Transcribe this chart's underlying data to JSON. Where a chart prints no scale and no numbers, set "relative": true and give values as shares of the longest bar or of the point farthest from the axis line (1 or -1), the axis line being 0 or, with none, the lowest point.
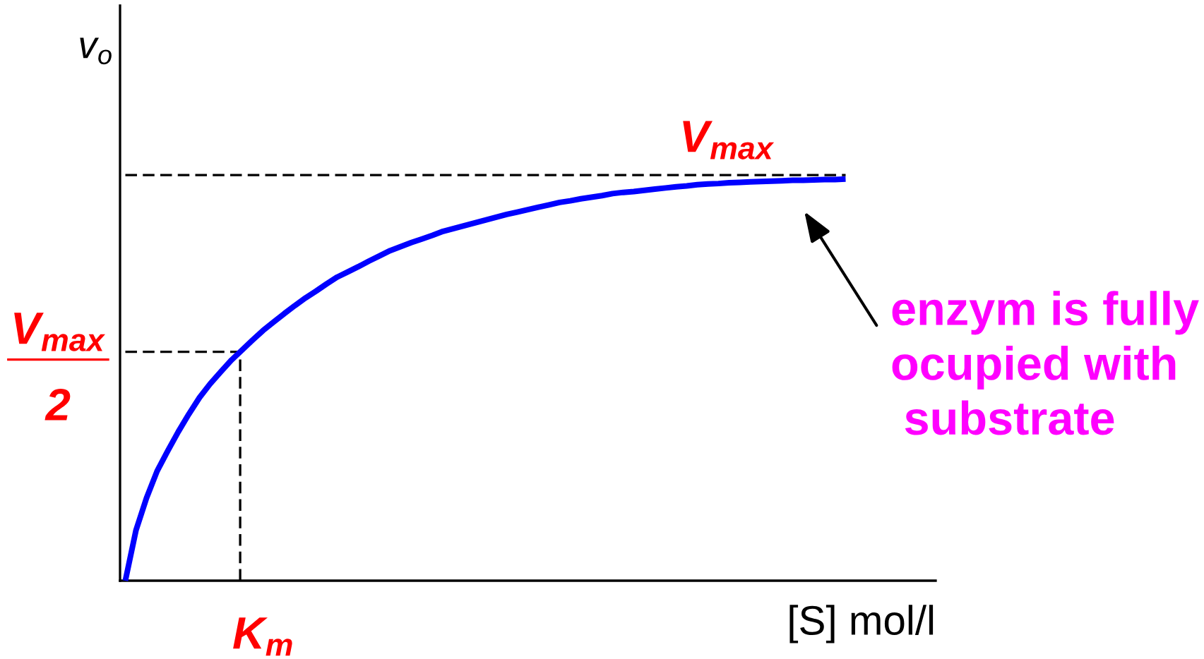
{
  "chart_data": {
    "type": "line",
    "relative": true,
    "categories": [
      null,
      null,
      null,
      null,
      null,
      null,
      null,
      null,
      null,
      null,
      null,
      null,
      null,
      null,
      null,
      null,
      null,
      null,
      null,
      null,
      null,
      null,
      null,
      null,
      null,
      null,
      null,
      null,
      null,
      null,
      null,
      null,
      null,
      null,
      null,
      null,
      null,
      null,
      null,
      null,
      null,
      null,
      null,
      null,
      null,
      null,
      null,
      null,
      null,
      null,
      null,
      null,
      null,
      null,
      null,
      null,
      null,
      null,
      null,
      null,
      null,
      null,
      null,
      null,
      null,
      null,
      null,
      null,
      null,
      null,
      null,
      null,
      null,
      null,
      null,
      null,
      null
    ],
    "xlabel": "[S] mol/l",
    "ylabel": "v$_{o}$",
    "series": [
      {
        "color": "#0000ff",
        "values": [
          0,
          0.125,
          0.206,
          0.273,
          0.323,
          0.371,
          0.415,
          0.456,
          0.49,
          0.52,
          0.549,
          0.574,
          0.599,
          0.623,
          0.644,
          0.665,
          0.685,
          0.704,
          0.721,
          0.739,
          0.756,
          0.769,
          0.782,
          0.796,
          0.809,
          0.822,
          0.832,
          0.842,
          0.851,
          0.86,
          0.87,
          0.877,
          0.884,
          0.891,
          0.898,
          0.905,
          0.912,
          0.918,
          0.924,
          0.93,
          0.936,
          0.942,
          0.946,
          0.951,
          0.955,
          0.959,
          0.964,
          0.967,
          0.969,
          0.972,
          0.975,
          0.978,
          0.981,
          0.983,
          0.986,
          0.988,
          0.989,
          0.991,
          0.992,
          0.993,
          0.994,
          0.995,
          0.996,
          0.997,
          0.997,
          0.998,
          0.999,
          0.999,
          1.0,
          null,
          null,
          null,
          null,
          null,
          null,
          null,
          null
        ]
      }
    ],
    "ref_lines": [
      {
        "axis": "y",
        "value": 1.01,
        "label": "V$_{max}$",
        "color": "#000000",
        "line_style": "dashed"
      },
      {
        "axis": "y",
        "value": 0.57,
        "label": "V$_{max}$\n2",
        "color": "#000000",
        "line_style": "dashed"
      }
    ],
    "annotations": [
      "enzym is fully\nocupied with\n substrate",
      "K$_{m}$"
    ]
  }
}
